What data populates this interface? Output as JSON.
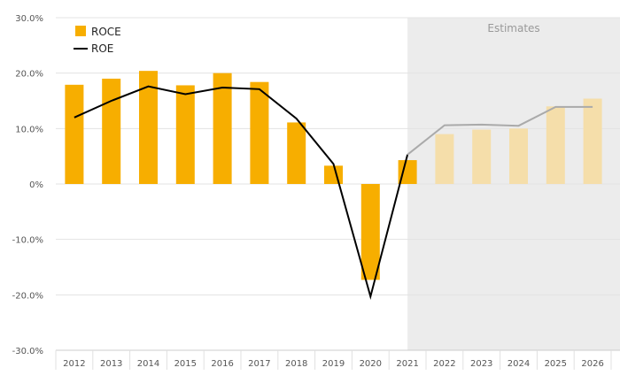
{
  "chart_data": {
    "type": "bar",
    "categories": [
      "2012",
      "2013",
      "2014",
      "2015",
      "2016",
      "2017",
      "2018",
      "2019",
      "2020",
      "2021",
      "2022",
      "2023",
      "2024",
      "2025",
      "2026"
    ],
    "ylim": [
      -30,
      30
    ],
    "yticks": [
      30,
      20,
      10,
      0,
      -10,
      -20,
      -30
    ],
    "ytick_labels": [
      "30.0%",
      "20.0%",
      "10.0%",
      "0%",
      "-10.0%",
      "-20.0%",
      "-30.0%"
    ],
    "series": [
      {
        "name": "ROCE",
        "type": "bar",
        "color": "#f7ae00",
        "estimate_color": "#f5deaa",
        "values": [
          17.9,
          19.0,
          20.4,
          17.8,
          20.0,
          18.4,
          11.1,
          3.3,
          -17.3,
          4.3,
          9.0,
          9.8,
          10.0,
          14.0,
          15.4
        ]
      },
      {
        "name": "ROE",
        "type": "line",
        "color": "#000000",
        "estimate_color": "#aaaaaa",
        "values": [
          12.0,
          15.0,
          17.6,
          16.2,
          17.4,
          17.1,
          11.8,
          3.6,
          -20.3,
          5.3,
          10.6,
          10.7,
          10.5,
          13.9,
          13.9
        ]
      }
    ],
    "estimates": {
      "label": "Estimates",
      "start_category": "2021"
    },
    "legend": {
      "position": "top-left"
    },
    "grid": true
  }
}
